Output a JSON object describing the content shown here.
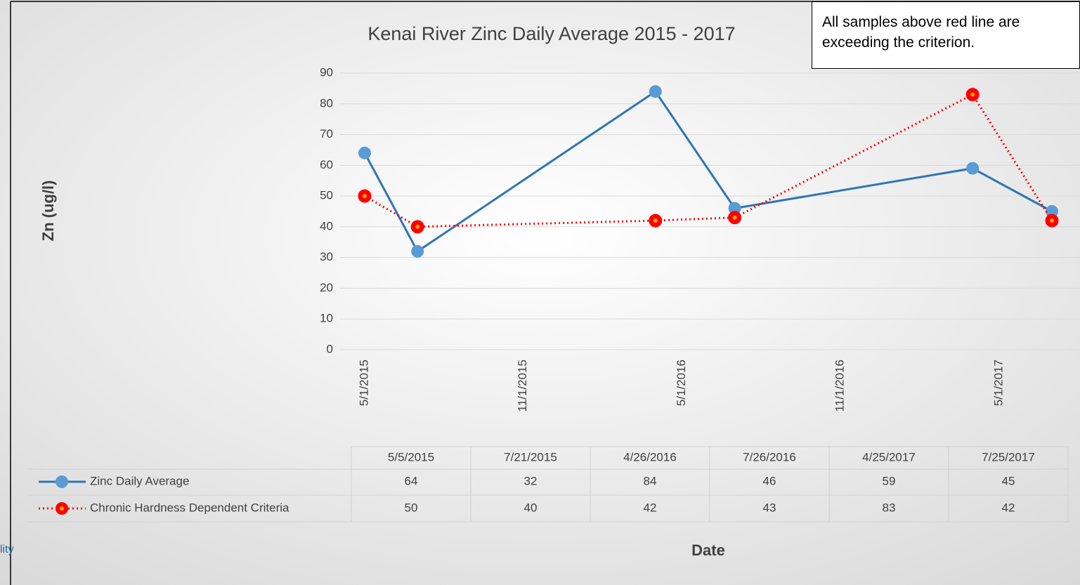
{
  "chart_data": {
    "type": "line",
    "title": "Kenai River Zinc Daily Average 2015 - 2017",
    "y_label": "Zn (ug/l)",
    "x_label": "Date",
    "annotation": "All samples above red line are exceeding the criterion.",
    "background_text": "lity",
    "x": [
      "5/5/2015",
      "7/21/2015",
      "4/26/2016",
      "7/26/2016",
      "4/25/2017",
      "7/25/2017"
    ],
    "series": [
      {
        "name": "Zinc Daily Average",
        "color": "#2e75b6",
        "marker_color": "#5b9bd5",
        "dash": false,
        "values": [
          64,
          32,
          84,
          46,
          59,
          45
        ]
      },
      {
        "name": "Chronic Hardness Dependent Criteria",
        "color": "#ff0000",
        "marker_color": "#ff0000",
        "dash": true,
        "values": [
          50,
          40,
          42,
          43,
          83,
          42
        ]
      }
    ],
    "xlim": [
      "5/1/2015",
      "7/1/2017"
    ],
    "xticks": [
      "5/1/2015",
      "11/1/2015",
      "5/1/2016",
      "11/1/2016",
      "5/1/2017"
    ],
    "ylim": [
      0,
      90
    ],
    "yticks": [
      0,
      10,
      20,
      30,
      40,
      50,
      60,
      70,
      80,
      90
    ],
    "grid": true,
    "data_table": true
  }
}
